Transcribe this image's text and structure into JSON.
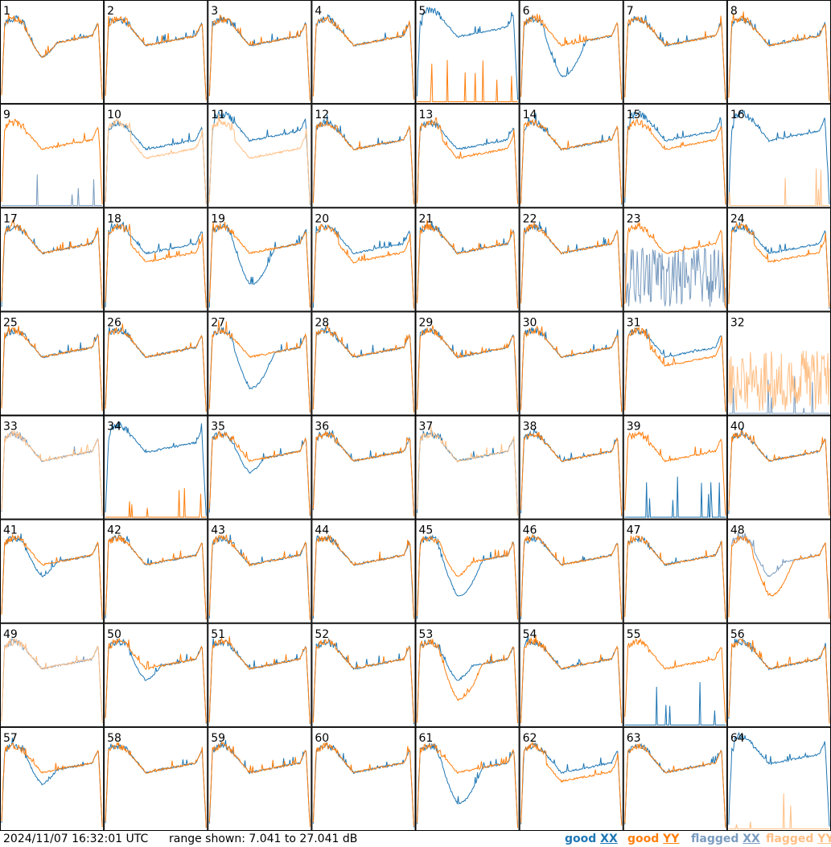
{
  "timestamp": "2024/11/07 16:32:01 UTC",
  "range_text": "range shown: 7.041 to 27.041 dB",
  "legend": [
    {
      "label": "good",
      "pol": "XX",
      "color": "#1f77b4"
    },
    {
      "label": "good",
      "pol": "YY",
      "color": "#ff7f0e"
    },
    {
      "label": "flagged",
      "pol": "XX",
      "color": "#7a9cc0"
    },
    {
      "label": "flagged",
      "pol": "YY",
      "color": "#ffbf85"
    }
  ],
  "colors": {
    "good_xx": "#1f77b4",
    "good_yy": "#ff7f0e",
    "flagged_xx": "#7a9cc0",
    "flagged_yy": "#ffbf85"
  },
  "chart_data": {
    "type": "line",
    "layout": "8x8 small multiples of spectra per tile",
    "x_unit": "channel (unlabeled)",
    "ylim": [
      7.041,
      27.041
    ],
    "y_unit": "dB",
    "grid": false,
    "tiles": [
      {
        "id": 1,
        "xx": {
          "state": "good",
          "shape": "dip"
        },
        "yy": {
          "state": "good",
          "shape": "dip"
        }
      },
      {
        "id": 2,
        "xx": {
          "state": "good",
          "shape": "std"
        },
        "yy": {
          "state": "good",
          "shape": "std"
        }
      },
      {
        "id": 3,
        "xx": {
          "state": "good",
          "shape": "std"
        },
        "yy": {
          "state": "good",
          "shape": "std"
        }
      },
      {
        "id": 4,
        "xx": {
          "state": "good",
          "shape": "std"
        },
        "yy": {
          "state": "good",
          "shape": "std"
        }
      },
      {
        "id": 5,
        "xx": {
          "state": "good",
          "shape": "high"
        },
        "yy": {
          "state": "good",
          "shape": "dead"
        }
      },
      {
        "id": 6,
        "xx": {
          "state": "good",
          "shape": "deepdip"
        },
        "yy": {
          "state": "good",
          "shape": "std"
        }
      },
      {
        "id": 7,
        "xx": {
          "state": "good",
          "shape": "std"
        },
        "yy": {
          "state": "good",
          "shape": "std"
        }
      },
      {
        "id": 8,
        "xx": {
          "state": "good",
          "shape": "std"
        },
        "yy": {
          "state": "good",
          "shape": "std"
        }
      },
      {
        "id": 9,
        "xx": {
          "state": "flagged",
          "shape": "dead"
        },
        "yy": {
          "state": "good",
          "shape": "std"
        }
      },
      {
        "id": 10,
        "xx": {
          "state": "good",
          "shape": "std"
        },
        "yy": {
          "state": "flagged",
          "shape": "low"
        }
      },
      {
        "id": 11,
        "xx": {
          "state": "good",
          "shape": "high"
        },
        "yy": {
          "state": "flagged",
          "shape": "low"
        }
      },
      {
        "id": 12,
        "xx": {
          "state": "good",
          "shape": "std"
        },
        "yy": {
          "state": "good",
          "shape": "std"
        }
      },
      {
        "id": 13,
        "xx": {
          "state": "good",
          "shape": "std"
        },
        "yy": {
          "state": "good",
          "shape": "low"
        }
      },
      {
        "id": 14,
        "xx": {
          "state": "good",
          "shape": "std"
        },
        "yy": {
          "state": "good",
          "shape": "std"
        }
      },
      {
        "id": 15,
        "xx": {
          "state": "good",
          "shape": "high"
        },
        "yy": {
          "state": "good",
          "shape": "std"
        }
      },
      {
        "id": 16,
        "xx": {
          "state": "good",
          "shape": "high"
        },
        "yy": {
          "state": "flagged",
          "shape": "dead"
        }
      },
      {
        "id": 17,
        "xx": {
          "state": "good",
          "shape": "std"
        },
        "yy": {
          "state": "good",
          "shape": "std"
        }
      },
      {
        "id": 18,
        "xx": {
          "state": "good",
          "shape": "std"
        },
        "yy": {
          "state": "good",
          "shape": "low"
        }
      },
      {
        "id": 19,
        "xx": {
          "state": "good",
          "shape": "deepdip"
        },
        "yy": {
          "state": "good",
          "shape": "std"
        }
      },
      {
        "id": 20,
        "xx": {
          "state": "good",
          "shape": "std"
        },
        "yy": {
          "state": "good",
          "shape": "low"
        }
      },
      {
        "id": 21,
        "xx": {
          "state": "good",
          "shape": "std"
        },
        "yy": {
          "state": "good",
          "shape": "std"
        }
      },
      {
        "id": 22,
        "xx": {
          "state": "good",
          "shape": "std"
        },
        "yy": {
          "state": "good",
          "shape": "std"
        }
      },
      {
        "id": 23,
        "xx": {
          "state": "flagged",
          "shape": "noise"
        },
        "yy": {
          "state": "good",
          "shape": "std"
        }
      },
      {
        "id": 24,
        "xx": {
          "state": "good",
          "shape": "std"
        },
        "yy": {
          "state": "good",
          "shape": "low"
        }
      },
      {
        "id": 25,
        "xx": {
          "state": "good",
          "shape": "std"
        },
        "yy": {
          "state": "good",
          "shape": "std"
        }
      },
      {
        "id": 26,
        "xx": {
          "state": "good",
          "shape": "std"
        },
        "yy": {
          "state": "good",
          "shape": "std"
        }
      },
      {
        "id": 27,
        "xx": {
          "state": "good",
          "shape": "deepdip"
        },
        "yy": {
          "state": "good",
          "shape": "std"
        }
      },
      {
        "id": 28,
        "xx": {
          "state": "good",
          "shape": "std"
        },
        "yy": {
          "state": "good",
          "shape": "std"
        }
      },
      {
        "id": 29,
        "xx": {
          "state": "good",
          "shape": "std"
        },
        "yy": {
          "state": "good",
          "shape": "std"
        }
      },
      {
        "id": 30,
        "xx": {
          "state": "good",
          "shape": "std"
        },
        "yy": {
          "state": "good",
          "shape": "std"
        }
      },
      {
        "id": 31,
        "xx": {
          "state": "good",
          "shape": "std"
        },
        "yy": {
          "state": "good",
          "shape": "low"
        }
      },
      {
        "id": 32,
        "xx": {
          "state": "flagged",
          "shape": "dead"
        },
        "yy": {
          "state": "flagged",
          "shape": "noise"
        }
      },
      {
        "id": 33,
        "xx": {
          "state": "flagged",
          "shape": "std"
        },
        "yy": {
          "state": "flagged",
          "shape": "std"
        }
      },
      {
        "id": 34,
        "xx": {
          "state": "good",
          "shape": "high"
        },
        "yy": {
          "state": "good",
          "shape": "dead"
        }
      },
      {
        "id": 35,
        "xx": {
          "state": "good",
          "shape": "dip"
        },
        "yy": {
          "state": "good",
          "shape": "std"
        }
      },
      {
        "id": 36,
        "xx": {
          "state": "good",
          "shape": "std"
        },
        "yy": {
          "state": "good",
          "shape": "std"
        }
      },
      {
        "id": 37,
        "xx": {
          "state": "good",
          "shape": "std"
        },
        "yy": {
          "state": "flagged",
          "shape": "std"
        }
      },
      {
        "id": 38,
        "xx": {
          "state": "good",
          "shape": "std"
        },
        "yy": {
          "state": "good",
          "shape": "std"
        }
      },
      {
        "id": 39,
        "xx": {
          "state": "good",
          "shape": "dead"
        },
        "yy": {
          "state": "good",
          "shape": "std"
        }
      },
      {
        "id": 40,
        "xx": {
          "state": "good",
          "shape": "std"
        },
        "yy": {
          "state": "good",
          "shape": "std"
        }
      },
      {
        "id": 41,
        "xx": {
          "state": "good",
          "shape": "dip"
        },
        "yy": {
          "state": "good",
          "shape": "std"
        }
      },
      {
        "id": 42,
        "xx": {
          "state": "good",
          "shape": "std"
        },
        "yy": {
          "state": "good",
          "shape": "std"
        }
      },
      {
        "id": 43,
        "xx": {
          "state": "good",
          "shape": "std"
        },
        "yy": {
          "state": "good",
          "shape": "std"
        }
      },
      {
        "id": 44,
        "xx": {
          "state": "good",
          "shape": "std"
        },
        "yy": {
          "state": "good",
          "shape": "std"
        }
      },
      {
        "id": 45,
        "xx": {
          "state": "good",
          "shape": "deepdip"
        },
        "yy": {
          "state": "good",
          "shape": "dip"
        }
      },
      {
        "id": 46,
        "xx": {
          "state": "good",
          "shape": "std"
        },
        "yy": {
          "state": "good",
          "shape": "std"
        }
      },
      {
        "id": 47,
        "xx": {
          "state": "good",
          "shape": "std"
        },
        "yy": {
          "state": "good",
          "shape": "std"
        }
      },
      {
        "id": 48,
        "xx": {
          "state": "flagged",
          "shape": "dip"
        },
        "yy": {
          "state": "good",
          "shape": "deepdip"
        }
      },
      {
        "id": 49,
        "xx": {
          "state": "flagged",
          "shape": "std"
        },
        "yy": {
          "state": "flagged",
          "shape": "std"
        }
      },
      {
        "id": 50,
        "xx": {
          "state": "good",
          "shape": "dip"
        },
        "yy": {
          "state": "good",
          "shape": "std"
        }
      },
      {
        "id": 51,
        "xx": {
          "state": "good",
          "shape": "std"
        },
        "yy": {
          "state": "good",
          "shape": "std"
        }
      },
      {
        "id": 52,
        "xx": {
          "state": "good",
          "shape": "std"
        },
        "yy": {
          "state": "good",
          "shape": "std"
        }
      },
      {
        "id": 53,
        "xx": {
          "state": "good",
          "shape": "dip"
        },
        "yy": {
          "state": "good",
          "shape": "deepdip"
        }
      },
      {
        "id": 54,
        "xx": {
          "state": "good",
          "shape": "std"
        },
        "yy": {
          "state": "good",
          "shape": "std"
        }
      },
      {
        "id": 55,
        "xx": {
          "state": "good",
          "shape": "dead"
        },
        "yy": {
          "state": "good",
          "shape": "std"
        }
      },
      {
        "id": 56,
        "xx": {
          "state": "good",
          "shape": "std"
        },
        "yy": {
          "state": "good",
          "shape": "std"
        }
      },
      {
        "id": 57,
        "xx": {
          "state": "good",
          "shape": "dip"
        },
        "yy": {
          "state": "good",
          "shape": "std"
        }
      },
      {
        "id": 58,
        "xx": {
          "state": "good",
          "shape": "std"
        },
        "yy": {
          "state": "good",
          "shape": "std"
        }
      },
      {
        "id": 59,
        "xx": {
          "state": "good",
          "shape": "std"
        },
        "yy": {
          "state": "good",
          "shape": "std"
        }
      },
      {
        "id": 60,
        "xx": {
          "state": "good",
          "shape": "std"
        },
        "yy": {
          "state": "good",
          "shape": "std"
        }
      },
      {
        "id": 61,
        "xx": {
          "state": "good",
          "shape": "deepdip"
        },
        "yy": {
          "state": "good",
          "shape": "std"
        }
      },
      {
        "id": 62,
        "xx": {
          "state": "good",
          "shape": "std"
        },
        "yy": {
          "state": "good",
          "shape": "low"
        }
      },
      {
        "id": 63,
        "xx": {
          "state": "good",
          "shape": "std"
        },
        "yy": {
          "state": "good",
          "shape": "std"
        }
      },
      {
        "id": 64,
        "xx": {
          "state": "good",
          "shape": "high"
        },
        "yy": {
          "state": "flagged",
          "shape": "dead"
        }
      }
    ]
  }
}
